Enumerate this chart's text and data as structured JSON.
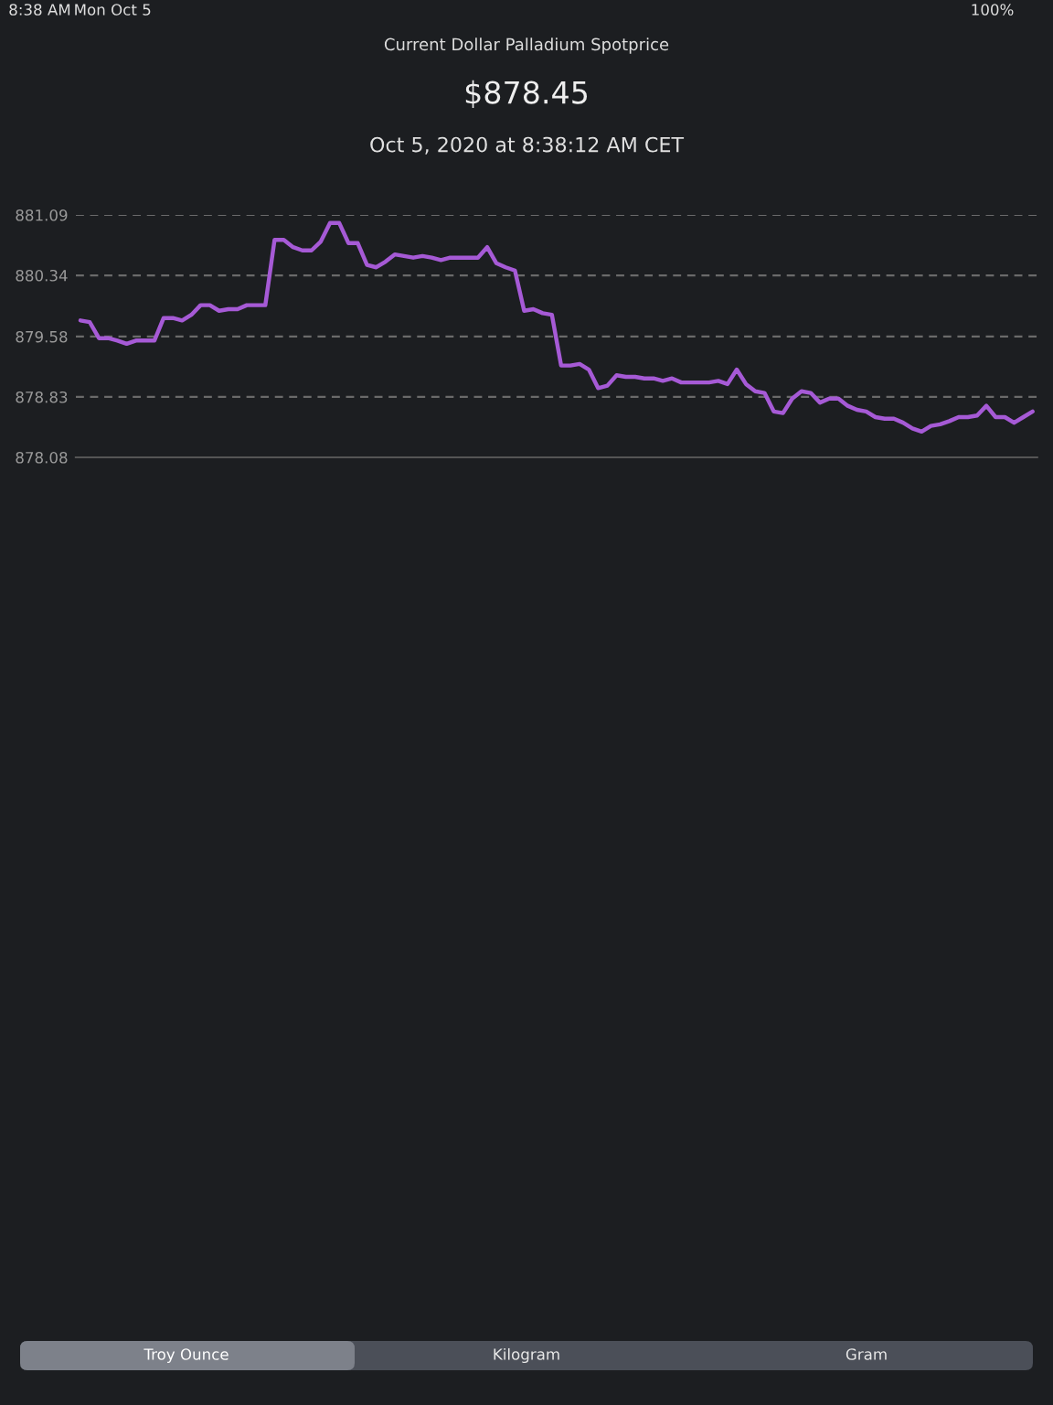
{
  "chart_data": {
    "type": "line",
    "title": "Current Dollar Palladium Spotprice",
    "subtitle": "$878.45",
    "annotations": [
      "Oct 5, 2020 at 8:38:12 AM CET",
      "8:38 AM",
      "Mon Oct 5",
      "100%",
      "Troy Ounce",
      "Kilogram",
      "Gram"
    ],
    "categories": [
      null,
      null,
      null,
      null,
      null,
      null,
      null,
      null,
      null,
      null,
      null,
      null,
      null,
      null,
      null,
      null,
      null,
      null,
      null,
      null,
      null,
      null,
      null,
      null,
      null,
      null,
      null,
      null,
      null,
      null,
      null,
      null,
      null,
      null,
      null,
      null,
      null,
      null,
      null,
      null,
      null,
      null,
      null,
      null,
      null,
      null,
      null,
      null,
      null,
      null,
      null,
      null,
      null,
      null,
      null,
      null,
      null,
      null,
      null,
      null,
      null,
      null,
      null,
      null,
      null,
      null,
      null,
      null,
      null,
      null,
      null,
      null,
      null,
      null,
      null,
      null,
      null,
      null,
      null,
      null,
      null,
      null,
      null,
      null,
      null,
      null,
      null,
      null,
      null,
      null,
      null,
      null,
      null,
      null,
      null,
      null,
      null,
      null,
      null,
      null,
      null,
      null,
      null,
      null
    ],
    "series": [
      {
        "color": "#a65ad6",
        "values": [
          879.78,
          879.76,
          879.56,
          879.56,
          879.53,
          879.49,
          879.53,
          879.53,
          879.53,
          879.81,
          879.81,
          879.78,
          879.85,
          879.97,
          879.97,
          879.9,
          879.92,
          879.92,
          879.97,
          879.97,
          879.97,
          880.78,
          880.78,
          880.69,
          880.65,
          880.65,
          880.76,
          880.99,
          880.99,
          880.74,
          880.74,
          880.47,
          880.44,
          880.51,
          880.6,
          880.58,
          880.56,
          880.58,
          880.56,
          880.53,
          880.56,
          880.56,
          880.56,
          880.56,
          880.69,
          880.49,
          880.44,
          880.4,
          879.9,
          879.92,
          879.87,
          879.85,
          879.22,
          879.22,
          879.24,
          879.17,
          878.94,
          878.97,
          879.1,
          879.08,
          879.08,
          879.06,
          879.06,
          879.03,
          879.06,
          879.01,
          879.01,
          879.01,
          879.01,
          879.03,
          878.99,
          879.17,
          878.99,
          878.9,
          878.88,
          878.65,
          878.63,
          878.81,
          878.9,
          878.88,
          878.76,
          878.81,
          878.81,
          878.72,
          878.67,
          878.65,
          878.58,
          878.56,
          878.56,
          878.51,
          878.44,
          878.4,
          878.47,
          878.49,
          878.53,
          878.58,
          878.58,
          878.6,
          878.72,
          878.58,
          878.58,
          878.51,
          878.58,
          878.65
        ]
      }
    ],
    "ylim": [
      878.08,
      881.09
    ],
    "yticks": [
      {
        "value": 878.08,
        "label": "878.08"
      },
      {
        "value": 878.83,
        "label": "878.83"
      },
      {
        "value": 879.58,
        "label": "879.58"
      },
      {
        "value": 880.34,
        "label": "880.34"
      },
      {
        "value": 881.09,
        "label": "881.09"
      }
    ],
    "grid": "y",
    "marker": "none",
    "line_style": "solid"
  }
}
